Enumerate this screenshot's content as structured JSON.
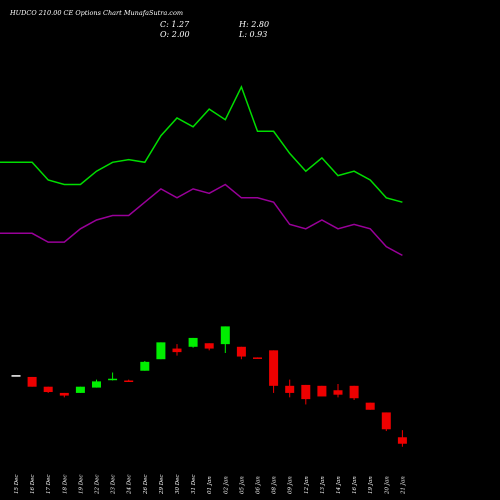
{
  "header": {
    "title": "HUDCO 210.00 CE Options Chart MunafaSutra.com",
    "close_text": "C: 1.27",
    "open_text": "O: 2.00",
    "high_text": "H: 2.80",
    "low_text": "L: 0.93"
  },
  "colors": {
    "up": "#00ee00",
    "down": "#ee0000",
    "flat": "#ffffff",
    "upper_band": "#00dd00",
    "lower_band": "#990099"
  },
  "chart_data": {
    "type": "candlestick",
    "categories": [
      "15 Dec",
      "16 Dec",
      "17 Dec",
      "18 Dec",
      "19 Dec",
      "22 Dec",
      "23 Dec",
      "24 Dec",
      "26 Dec",
      "29 Dec",
      "30 Dec",
      "31 Dec",
      "01 Jan",
      "02 Jan",
      "05 Jan",
      "06 Jan",
      "08 Jan",
      "09 Jan",
      "12 Jan",
      "13 Jan",
      "14 Jan",
      "16 Jan",
      "19 Jan",
      "20 Jan",
      "21 Jan"
    ],
    "ohlc": [
      {
        "o": 9.0,
        "h": 9.0,
        "l": 9.0,
        "c": 9.0
      },
      {
        "o": 8.8,
        "h": 8.8,
        "l": 7.7,
        "c": 7.7
      },
      {
        "o": 7.7,
        "h": 7.7,
        "l": 7.0,
        "c": 7.1
      },
      {
        "o": 7.0,
        "h": 7.0,
        "l": 6.5,
        "c": 6.7
      },
      {
        "o": 7.0,
        "h": 7.7,
        "l": 7.0,
        "c": 7.7
      },
      {
        "o": 7.6,
        "h": 8.5,
        "l": 7.6,
        "c": 8.3
      },
      {
        "o": 8.5,
        "h": 9.3,
        "l": 8.4,
        "c": 8.6
      },
      {
        "o": 8.4,
        "h": 8.5,
        "l": 8.3,
        "c": 8.3
      },
      {
        "o": 9.5,
        "h": 10.6,
        "l": 9.5,
        "c": 10.5
      },
      {
        "o": 10.8,
        "h": 12.7,
        "l": 10.8,
        "c": 12.7
      },
      {
        "o": 12.0,
        "h": 12.5,
        "l": 11.2,
        "c": 11.6
      },
      {
        "o": 12.2,
        "h": 13.2,
        "l": 12.1,
        "c": 13.2
      },
      {
        "o": 12.6,
        "h": 12.6,
        "l": 11.8,
        "c": 12.0
      },
      {
        "o": 12.5,
        "h": 14.5,
        "l": 11.5,
        "c": 14.5
      },
      {
        "o": 12.2,
        "h": 12.2,
        "l": 10.8,
        "c": 11.1
      },
      {
        "o": 11.0,
        "h": 11.0,
        "l": 10.9,
        "c": 10.9
      },
      {
        "o": 11.8,
        "h": 11.8,
        "l": 7.0,
        "c": 7.8
      },
      {
        "o": 7.8,
        "h": 8.5,
        "l": 6.5,
        "c": 7.0
      },
      {
        "o": 7.9,
        "h": 7.9,
        "l": 5.7,
        "c": 6.3
      },
      {
        "o": 7.8,
        "h": 7.8,
        "l": 6.6,
        "c": 6.6
      },
      {
        "o": 7.3,
        "h": 8.0,
        "l": 6.5,
        "c": 6.8
      },
      {
        "o": 7.8,
        "h": 7.8,
        "l": 6.2,
        "c": 6.4
      },
      {
        "o": 5.9,
        "h": 5.9,
        "l": 5.1,
        "c": 5.1
      },
      {
        "o": 4.8,
        "h": 4.8,
        "l": 2.7,
        "c": 2.9
      },
      {
        "o": 2.0,
        "h": 2.8,
        "l": 0.93,
        "c": 1.27
      }
    ],
    "upper_band": [
      33.0,
      33.0,
      31.0,
      30.5,
      30.5,
      32.0,
      33.0,
      33.3,
      33.0,
      36.0,
      38.0,
      37.0,
      39.0,
      37.8,
      41.5,
      36.5,
      36.5,
      34.0,
      32.0,
      33.5,
      31.5,
      32.0,
      31.0,
      29.0,
      28.5
    ],
    "lower_band": [
      25.0,
      25.0,
      24.0,
      24.0,
      25.5,
      26.5,
      27.0,
      27.0,
      28.5,
      30.0,
      29.0,
      30.0,
      29.5,
      30.5,
      29.0,
      29.0,
      28.5,
      26.0,
      25.5,
      26.5,
      25.5,
      26.0,
      25.5,
      23.5,
      22.5
    ],
    "ylim": [
      0,
      46
    ],
    "grid": false
  }
}
